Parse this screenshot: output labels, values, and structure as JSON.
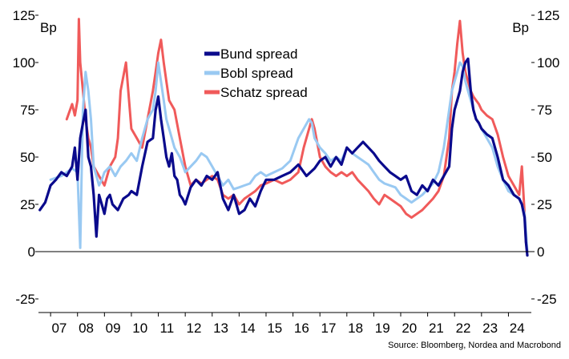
{
  "chart_data": {
    "type": "line",
    "title": "",
    "units_left": "Bp",
    "units_right": "Bp",
    "ylim": [
      -30,
      128
    ],
    "yticks": [
      125,
      100,
      75,
      50,
      25,
      0,
      -25
    ],
    "xlim": [
      2006.55,
      2024.85
    ],
    "xtick_labels": [
      "07",
      "08",
      "09",
      "10",
      "11",
      "12",
      "13",
      "14",
      "15",
      "16",
      "17",
      "18",
      "19",
      "20",
      "21",
      "22",
      "23",
      "24"
    ],
    "grid": false,
    "legend_position": "top-center",
    "source": "Source: Bloomberg, Nordea and Macrobond",
    "series": [
      {
        "name": "Bund spread",
        "color": "#0a0a8c",
        "x": [
          2006.6,
          2006.8,
          2007.0,
          2007.2,
          2007.4,
          2007.6,
          2007.8,
          2007.9,
          2008.0,
          2008.1,
          2008.2,
          2008.3,
          2008.4,
          2008.5,
          2008.6,
          2008.7,
          2008.8,
          2008.9,
          2009.0,
          2009.1,
          2009.2,
          2009.3,
          2009.5,
          2009.7,
          2009.9,
          2010.0,
          2010.2,
          2010.4,
          2010.6,
          2010.8,
          2010.9,
          2011.0,
          2011.1,
          2011.2,
          2011.3,
          2011.4,
          2011.5,
          2011.6,
          2011.7,
          2011.8,
          2011.9,
          2012.0,
          2012.2,
          2012.4,
          2012.6,
          2012.8,
          2013.0,
          2013.2,
          2013.4,
          2013.6,
          2013.8,
          2014.0,
          2014.2,
          2014.4,
          2014.6,
          2014.8,
          2015.0,
          2015.3,
          2015.6,
          2015.9,
          2016.2,
          2016.5,
          2016.8,
          2017.0,
          2017.2,
          2017.4,
          2017.6,
          2017.8,
          2018.0,
          2018.2,
          2018.4,
          2018.6,
          2018.8,
          2019.0,
          2019.2,
          2019.4,
          2019.6,
          2019.8,
          2020.0,
          2020.2,
          2020.4,
          2020.6,
          2020.8,
          2021.0,
          2021.2,
          2021.4,
          2021.6,
          2021.8,
          2021.9,
          2022.0,
          2022.1,
          2022.2,
          2022.3,
          2022.4,
          2022.5,
          2022.6,
          2022.7,
          2022.8,
          2022.9,
          2023.0,
          2023.2,
          2023.4,
          2023.6,
          2023.8,
          2024.0,
          2024.2,
          2024.4,
          2024.5,
          2024.6,
          2024.65,
          2024.7
        ],
        "values": [
          22,
          26,
          35,
          38,
          42,
          40,
          45,
          55,
          38,
          60,
          68,
          75,
          50,
          45,
          30,
          8,
          30,
          25,
          20,
          28,
          30,
          25,
          22,
          28,
          30,
          32,
          30,
          45,
          58,
          60,
          75,
          82,
          70,
          60,
          50,
          45,
          52,
          40,
          38,
          30,
          28,
          25,
          34,
          38,
          35,
          40,
          38,
          42,
          28,
          22,
          30,
          20,
          22,
          28,
          24,
          32,
          38,
          38,
          40,
          42,
          46,
          40,
          44,
          48,
          50,
          45,
          50,
          46,
          55,
          52,
          55,
          58,
          55,
          52,
          48,
          45,
          42,
          40,
          38,
          40,
          32,
          30,
          35,
          32,
          38,
          35,
          40,
          45,
          65,
          75,
          80,
          85,
          95,
          100,
          102,
          85,
          75,
          70,
          68,
          65,
          62,
          60,
          50,
          38,
          35,
          30,
          28,
          25,
          18,
          5,
          -2
        ]
      },
      {
        "name": "Bobl spread",
        "color": "#99c9f2",
        "x": [
          2007.0,
          2007.4,
          2007.8,
          2008.0,
          2008.1,
          2008.15,
          2008.2,
          2008.3,
          2008.4,
          2008.5,
          2008.6,
          2008.7,
          2008.8,
          2008.9,
          2009.0,
          2009.2,
          2009.4,
          2009.6,
          2009.8,
          2010.0,
          2010.2,
          2010.4,
          2010.6,
          2010.8,
          2010.9,
          2011.0,
          2011.1,
          2011.2,
          2011.3,
          2011.4,
          2011.6,
          2011.8,
          2012.0,
          2012.2,
          2012.4,
          2012.6,
          2012.8,
          2013.0,
          2013.2,
          2013.4,
          2013.6,
          2013.8,
          2014.0,
          2014.2,
          2014.4,
          2014.6,
          2014.8,
          2015.0,
          2015.3,
          2015.6,
          2015.9,
          2016.2,
          2016.4,
          2016.6,
          2016.7,
          2016.8,
          2017.0,
          2017.2,
          2017.4,
          2017.6,
          2017.8,
          2018.0,
          2018.2,
          2018.4,
          2018.6,
          2018.8,
          2019.0,
          2019.2,
          2019.4,
          2019.6,
          2019.8,
          2020.0,
          2020.2,
          2020.4,
          2020.6,
          2020.8,
          2021.0,
          2021.2,
          2021.4,
          2021.6,
          2021.8,
          2021.9,
          2022.0,
          2022.1,
          2022.2,
          2022.3,
          2022.4,
          2022.5,
          2022.6,
          2022.7,
          2022.8,
          2022.9,
          2023.0,
          2023.2,
          2023.4,
          2023.6,
          2023.8,
          2024.0,
          2024.2,
          2024.4,
          2024.5,
          2024.6,
          2024.65,
          2024.7
        ],
        "values": [
          38,
          40,
          44,
          42,
          2,
          40,
          75,
          95,
          85,
          70,
          45,
          40,
          35,
          38,
          42,
          45,
          40,
          45,
          48,
          52,
          48,
          60,
          70,
          75,
          85,
          100,
          90,
          80,
          70,
          65,
          55,
          50,
          42,
          45,
          48,
          52,
          50,
          45,
          40,
          35,
          38,
          33,
          34,
          35,
          36,
          40,
          42,
          40,
          42,
          44,
          48,
          60,
          65,
          70,
          68,
          60,
          55,
          52,
          48,
          50,
          48,
          55,
          52,
          50,
          48,
          46,
          42,
          38,
          36,
          35,
          34,
          30,
          28,
          26,
          28,
          30,
          33,
          36,
          42,
          55,
          75,
          85,
          90,
          95,
          100,
          98,
          90,
          85,
          80,
          75,
          70,
          68,
          65,
          60,
          55,
          45,
          38,
          32,
          30,
          28,
          25,
          20,
          10,
          0
        ]
      },
      {
        "name": "Schatz spread",
        "color": "#f05a5a",
        "x": [
          2007.6,
          2007.8,
          2007.9,
          2008.0,
          2008.05,
          2008.1,
          2008.2,
          2008.3,
          2008.4,
          2008.5,
          2008.6,
          2008.8,
          2009.0,
          2009.2,
          2009.4,
          2009.5,
          2009.6,
          2009.8,
          2010.0,
          2010.2,
          2010.4,
          2010.6,
          2010.8,
          2010.9,
          2011.0,
          2011.1,
          2011.2,
          2011.3,
          2011.4,
          2011.6,
          2011.8,
          2012.0,
          2012.2,
          2012.4,
          2012.6,
          2012.8,
          2013.0,
          2013.2,
          2013.4,
          2013.6,
          2013.8,
          2014.0,
          2014.2,
          2014.4,
          2014.6,
          2014.8,
          2015.0,
          2015.3,
          2015.6,
          2015.9,
          2016.2,
          2016.4,
          2016.6,
          2016.7,
          2016.8,
          2017.0,
          2017.2,
          2017.4,
          2017.6,
          2017.8,
          2018.0,
          2018.2,
          2018.4,
          2018.6,
          2018.8,
          2019.0,
          2019.2,
          2019.4,
          2019.6,
          2019.8,
          2020.0,
          2020.2,
          2020.4,
          2020.6,
          2020.8,
          2021.0,
          2021.2,
          2021.4,
          2021.6,
          2021.8,
          2021.9,
          2022.0,
          2022.1,
          2022.2,
          2022.3,
          2022.4,
          2022.5,
          2022.6,
          2022.7,
          2022.8,
          2022.9,
          2023.0,
          2023.2,
          2023.4,
          2023.6,
          2023.8,
          2024.0,
          2024.2,
          2024.4,
          2024.5,
          2024.6,
          2024.65,
          2024.7
        ],
        "values": [
          70,
          78,
          72,
          80,
          123,
          100,
          85,
          70,
          60,
          55,
          45,
          40,
          35,
          45,
          50,
          60,
          85,
          100,
          65,
          60,
          55,
          70,
          85,
          95,
          105,
          112,
          100,
          90,
          80,
          75,
          60,
          45,
          35,
          38,
          36,
          38,
          40,
          38,
          30,
          28,
          30,
          25,
          28,
          30,
          32,
          35,
          36,
          38,
          36,
          38,
          42,
          55,
          65,
          70,
          65,
          50,
          45,
          42,
          40,
          42,
          40,
          42,
          38,
          35,
          32,
          28,
          25,
          30,
          28,
          26,
          24,
          20,
          18,
          20,
          22,
          25,
          28,
          32,
          40,
          60,
          85,
          95,
          110,
          122,
          105,
          95,
          90,
          85,
          82,
          80,
          78,
          75,
          72,
          70,
          62,
          50,
          40,
          35,
          30,
          45,
          20,
          5,
          0
        ]
      }
    ]
  }
}
